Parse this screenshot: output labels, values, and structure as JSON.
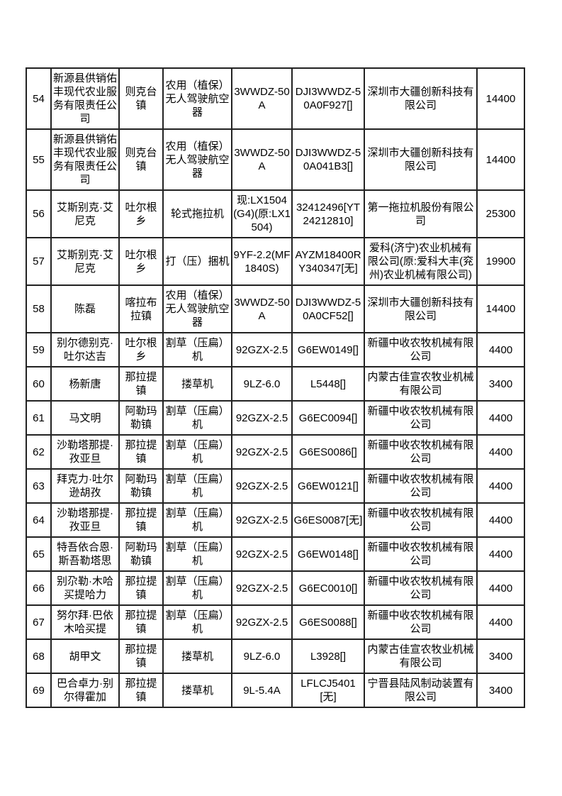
{
  "colors": {
    "page_background": "#ffffff",
    "table_border": "#222222",
    "text": "#000000"
  },
  "table": {
    "rows": [
      {
        "index": "54",
        "name": "新源县供销佑丰现代农业服务有限责任公司",
        "town": "则克台镇",
        "machine": "农用（植保）无人驾驶航空器",
        "model": "3WWDZ-50A",
        "serial": "DJI3WWDZ-50A0F927[]",
        "manufacturer": "深圳市大疆创新科技有限公司",
        "amount": "14400"
      },
      {
        "index": "55",
        "name": "新源县供销佑丰现代农业服务有限责任公司",
        "town": "则克台镇",
        "machine": "农用（植保）无人驾驶航空器",
        "model": "3WWDZ-50A",
        "serial": "DJI3WWDZ-50A041B3[]",
        "manufacturer": "深圳市大疆创新科技有限公司",
        "amount": "14400"
      },
      {
        "index": "56",
        "name": "艾斯别克·艾尼克",
        "town": "吐尔根乡",
        "machine": "轮式拖拉机",
        "model": "现:LX1504(G4)(原:LX1504)",
        "serial": "32412496[YT24212810]",
        "manufacturer": "第一拖拉机股份有限公司",
        "amount": "25300"
      },
      {
        "index": "57",
        "name": "艾斯别克·艾尼克",
        "town": "吐尔根乡",
        "machine": "打（压）捆机",
        "model": "9YF-2.2(MF1840S)",
        "serial": "AYZM18400RY340347[无]",
        "manufacturer": "爱科(济宁)农业机械有限公司(原:爱科大丰(兖州)农业机械有限公司)",
        "amount": "19900"
      },
      {
        "index": "58",
        "name": "陈磊",
        "town": "喀拉布拉镇",
        "machine": "农用（植保）无人驾驶航空器",
        "model": "3WWDZ-50A",
        "serial": "DJI3WWDZ-50A0CF52[]",
        "manufacturer": "深圳市大疆创新科技有限公司",
        "amount": "14400"
      },
      {
        "index": "59",
        "name": "别尔德别克·吐尔达吉",
        "town": "吐尔根乡",
        "machine": "割草（压扁）机",
        "model": "92GZX-2.5",
        "serial": "G6EW0149[]",
        "manufacturer": "新疆中收农牧机械有限公司",
        "amount": "4400"
      },
      {
        "index": "60",
        "name": "杨新唐",
        "town": "那拉提镇",
        "machine": "搂草机",
        "model": "9LZ-6.0",
        "serial": "L5448[]",
        "manufacturer": "内蒙古佳宣农牧业机械有限公司",
        "amount": "3400"
      },
      {
        "index": "61",
        "name": "马文明",
        "town": "阿勒玛勒镇",
        "machine": "割草（压扁）机",
        "model": "92GZX-2.5",
        "serial": "G6EC0094[]",
        "manufacturer": "新疆中收农牧机械有限公司",
        "amount": "4400"
      },
      {
        "index": "62",
        "name": "沙勒塔那提·孜亚旦",
        "town": "那拉提镇",
        "machine": "割草（压扁）机",
        "model": "92GZX-2.5",
        "serial": "G6ES0086[]",
        "manufacturer": "新疆中收农牧机械有限公司",
        "amount": "4400"
      },
      {
        "index": "63",
        "name": "拜克力·吐尔逊胡孜",
        "town": "阿勒玛勒镇",
        "machine": "割草（压扁）机",
        "model": "92GZX-2.5",
        "serial": "G6EW0121[]",
        "manufacturer": "新疆中收农牧机械有限公司",
        "amount": "4400"
      },
      {
        "index": "64",
        "name": "沙勒塔那提·孜亚旦",
        "town": "那拉提镇",
        "machine": "割草（压扁）机",
        "model": "92GZX-2.5",
        "serial": "G6ES0087[无]",
        "manufacturer": "新疆中收农牧机械有限公司",
        "amount": "4400"
      },
      {
        "index": "65",
        "name": "特吾依合恩·斯吾勒塔思",
        "town": "阿勒玛勒镇",
        "machine": "割草（压扁）机",
        "model": "92GZX-2.5",
        "serial": "G6EW0148[]",
        "manufacturer": "新疆中收农牧机械有限公司",
        "amount": "4400"
      },
      {
        "index": "66",
        "name": "别尕勒·木哈买提哈力",
        "town": "那拉提镇",
        "machine": "割草（压扁）机",
        "model": "92GZX-2.5",
        "serial": "G6EC0010[]",
        "manufacturer": "新疆中收农牧机械有限公司",
        "amount": "4400"
      },
      {
        "index": "67",
        "name": "努尔拜·巴依木哈买提",
        "town": "那拉提镇",
        "machine": "割草（压扁）机",
        "model": "92GZX-2.5",
        "serial": "G6ES0088[]",
        "manufacturer": "新疆中收农牧机械有限公司",
        "amount": "4400"
      },
      {
        "index": "68",
        "name": "胡甲文",
        "town": "那拉提镇",
        "machine": "搂草机",
        "model": "9LZ-6.0",
        "serial": "L3928[]",
        "manufacturer": "内蒙古佳宣农牧业机械有限公司",
        "amount": "3400"
      },
      {
        "index": "69",
        "name": "巴合卓力·别尔得霍加",
        "town": "那拉提镇",
        "machine": "搂草机",
        "model": "9L-5.4A",
        "serial": "LFLCJ5401[无]",
        "manufacturer": "宁晋县陆风制动装置有限公司",
        "amount": "3400"
      }
    ]
  }
}
